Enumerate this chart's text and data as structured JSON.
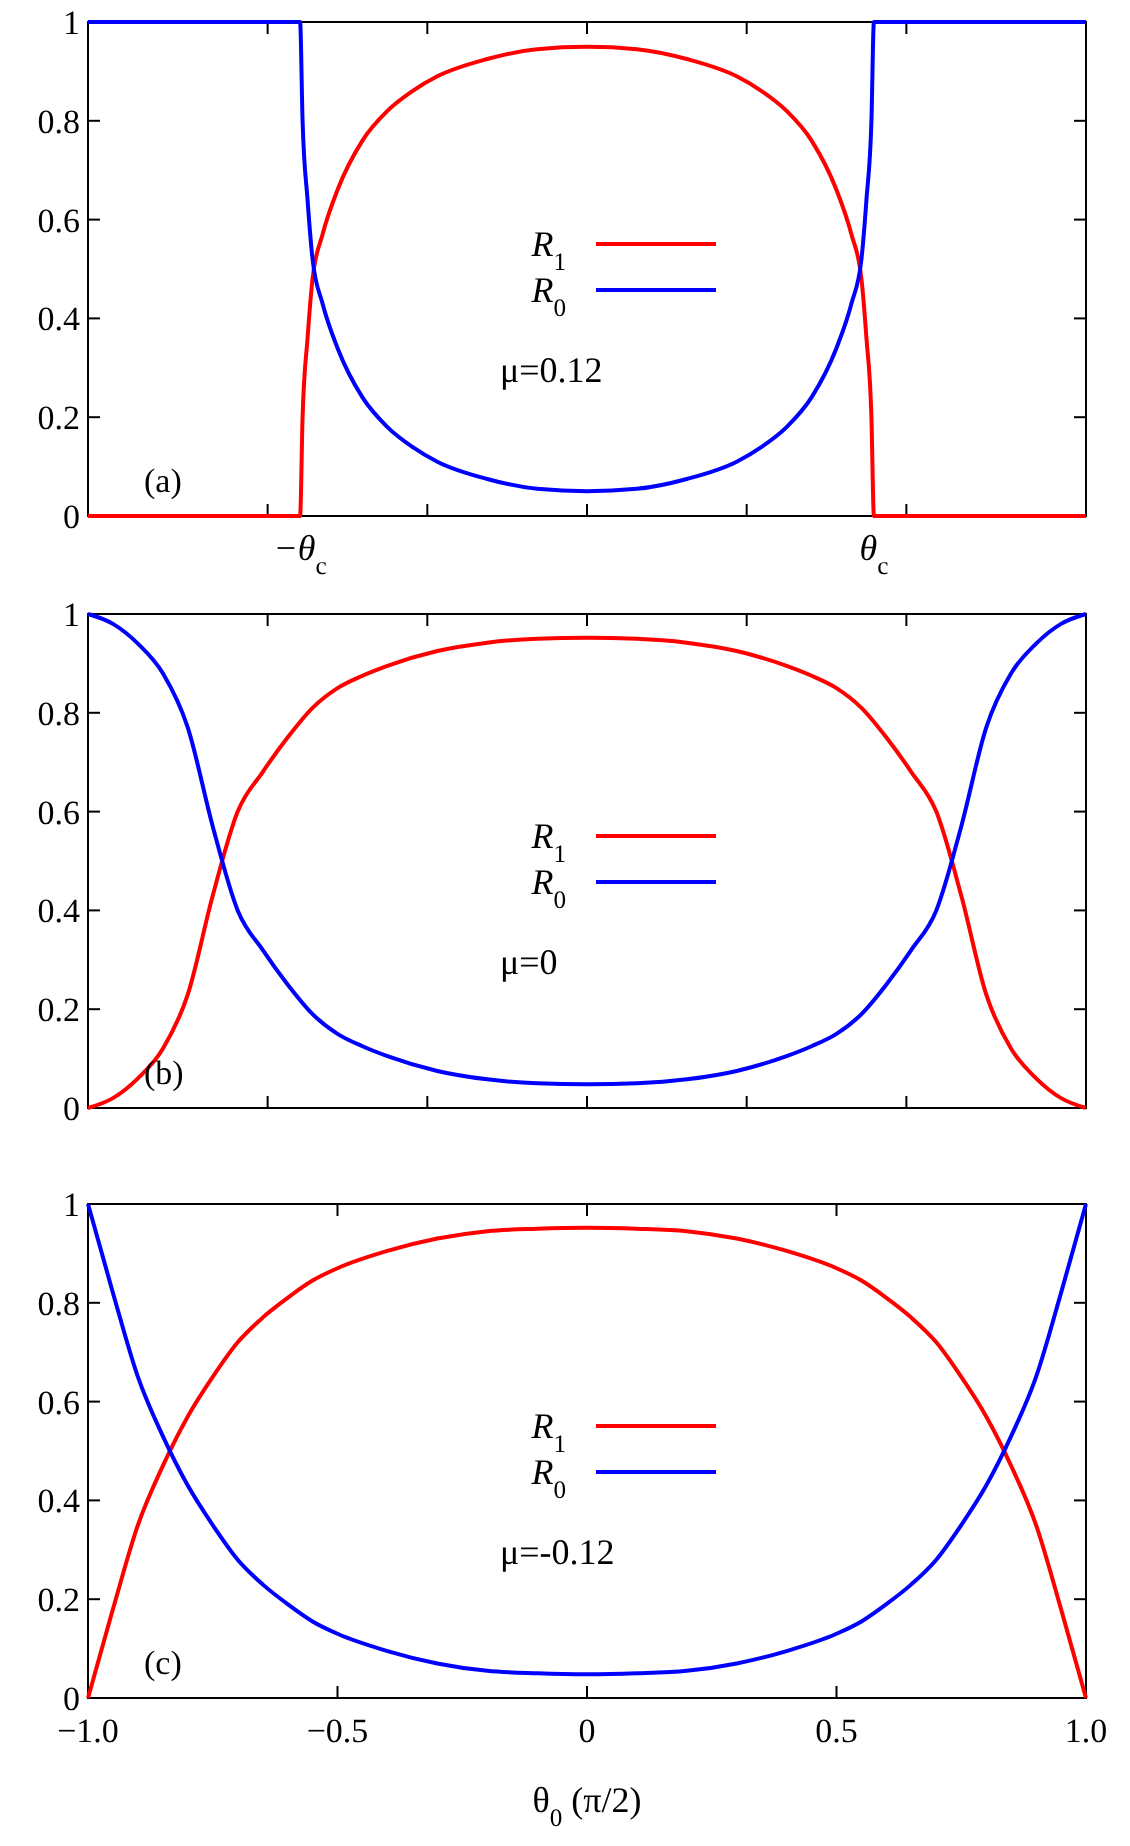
{
  "chart_data": [
    {
      "type": "line",
      "xlim": [
        -1,
        1
      ],
      "ylim": [
        0,
        1
      ],
      "yticks": [
        0,
        0.2,
        0.4,
        0.6,
        0.8,
        1
      ],
      "tick_labels": "y",
      "xticks": [
        {
          "value": -0.64,
          "label": null
        },
        {
          "value": -0.32,
          "label": null
        },
        {
          "value": 0,
          "label": null
        },
        {
          "value": 0.32,
          "label": null
        },
        {
          "value": 0.64,
          "label": null
        }
      ],
      "x": [
        -1,
        -0.8,
        -0.6,
        -0.575,
        -0.57,
        -0.56,
        -0.55,
        -0.53,
        -0.5,
        -0.45,
        -0.4,
        -0.35,
        -0.3,
        -0.2,
        -0.1,
        0,
        0.1,
        0.2,
        0.3,
        0.35,
        0.4,
        0.45,
        0.5,
        0.53,
        0.55,
        0.56,
        0.57,
        0.575,
        0.6,
        0.8,
        1
      ],
      "series": [
        {
          "name": "R$_{1}$",
          "color": "#ff0000",
          "values": [
            0,
            0,
            0,
            0,
            0.2,
            0.36,
            0.48,
            0.57,
            0.66,
            0.76,
            0.82,
            0.86,
            0.89,
            0.925,
            0.945,
            0.95,
            0.945,
            0.925,
            0.89,
            0.86,
            0.82,
            0.76,
            0.66,
            0.57,
            0.48,
            0.36,
            0.2,
            0,
            0,
            0,
            0
          ]
        },
        {
          "name": "R$_{0}$",
          "color": "#0000ff",
          "values": [
            1,
            1,
            1,
            1,
            0.8,
            0.64,
            0.52,
            0.43,
            0.34,
            0.24,
            0.18,
            0.14,
            0.11,
            0.075,
            0.055,
            0.05,
            0.055,
            0.075,
            0.11,
            0.14,
            0.18,
            0.24,
            0.34,
            0.43,
            0.52,
            0.64,
            0.8,
            1,
            1,
            1,
            1
          ]
        }
      ],
      "legend": "center",
      "annotations": [
        "(a)",
        "μ=0.12",
        {
          "text": "−θ$_{c}$",
          "x": -0.575,
          "y": 0
        },
        {
          "text": "θ$_{c}$",
          "x": 0.575,
          "y": 0
        }
      ]
    },
    {
      "type": "line",
      "xlim": [
        -1,
        1
      ],
      "ylim": [
        0,
        1
      ],
      "yticks": [
        0,
        0.2,
        0.4,
        0.6,
        0.8,
        1
      ],
      "tick_labels": "y",
      "xticks": [
        {
          "value": -0.64,
          "label": null
        },
        {
          "value": -0.32,
          "label": null
        },
        {
          "value": 0,
          "label": null
        },
        {
          "value": 0.32,
          "label": null
        },
        {
          "value": 0.64,
          "label": null
        }
      ],
      "x": [
        -1,
        -0.95,
        -0.9,
        -0.85,
        -0.8,
        -0.75,
        -0.7,
        -0.65,
        -0.6,
        -0.55,
        -0.5,
        -0.45,
        -0.4,
        -0.3,
        -0.2,
        -0.1,
        0,
        0.1,
        0.2,
        0.3,
        0.4,
        0.45,
        0.5,
        0.55,
        0.6,
        0.65,
        0.7,
        0.75,
        0.8,
        0.85,
        0.9,
        0.95,
        1
      ],
      "series": [
        {
          "name": "R$_{1}$",
          "color": "#ff0000",
          "values": [
            0,
            0.02,
            0.06,
            0.12,
            0.23,
            0.43,
            0.6,
            0.68,
            0.75,
            0.81,
            0.85,
            0.875,
            0.895,
            0.925,
            0.942,
            0.95,
            0.952,
            0.95,
            0.942,
            0.925,
            0.895,
            0.875,
            0.85,
            0.81,
            0.75,
            0.68,
            0.6,
            0.43,
            0.23,
            0.12,
            0.06,
            0.02,
            0
          ]
        },
        {
          "name": "R$_{0}$",
          "color": "#0000ff",
          "values": [
            1,
            0.98,
            0.94,
            0.88,
            0.77,
            0.57,
            0.4,
            0.32,
            0.25,
            0.19,
            0.15,
            0.125,
            0.105,
            0.075,
            0.058,
            0.05,
            0.048,
            0.05,
            0.058,
            0.075,
            0.105,
            0.125,
            0.15,
            0.19,
            0.25,
            0.32,
            0.4,
            0.57,
            0.77,
            0.88,
            0.94,
            0.98,
            1
          ]
        }
      ],
      "legend": "center",
      "annotations": [
        "(b)",
        "μ=0"
      ]
    },
    {
      "type": "line",
      "xlim": [
        -1,
        1
      ],
      "ylim": [
        0,
        1
      ],
      "yticks": [
        0,
        0.2,
        0.4,
        0.6,
        0.8,
        1
      ],
      "xlabel": "θ$_{0}$ (π/2)",
      "xticks": [
        {
          "value": -1,
          "label": "−1.0"
        },
        {
          "value": -0.5,
          "label": "−0.5"
        },
        0,
        0.5,
        {
          "value": 1,
          "label": "1.0"
        }
      ],
      "x": [
        -1,
        -0.95,
        -0.9,
        -0.85,
        -0.8,
        -0.75,
        -0.7,
        -0.65,
        -0.6,
        -0.55,
        -0.5,
        -0.4,
        -0.3,
        -0.2,
        -0.1,
        0,
        0.1,
        0.2,
        0.3,
        0.4,
        0.5,
        0.55,
        0.6,
        0.65,
        0.7,
        0.75,
        0.8,
        0.85,
        0.9,
        0.95,
        1
      ],
      "series": [
        {
          "name": "R$_{1}$",
          "color": "#ff0000",
          "values": [
            0,
            0.18,
            0.35,
            0.47,
            0.57,
            0.65,
            0.72,
            0.77,
            0.81,
            0.845,
            0.87,
            0.905,
            0.93,
            0.945,
            0.95,
            0.952,
            0.95,
            0.945,
            0.93,
            0.905,
            0.87,
            0.845,
            0.81,
            0.77,
            0.72,
            0.65,
            0.57,
            0.47,
            0.35,
            0.18,
            0
          ]
        },
        {
          "name": "R$_{0}$",
          "color": "#0000ff",
          "values": [
            1,
            0.82,
            0.65,
            0.53,
            0.43,
            0.35,
            0.28,
            0.23,
            0.19,
            0.155,
            0.13,
            0.095,
            0.07,
            0.055,
            0.05,
            0.048,
            0.05,
            0.055,
            0.07,
            0.095,
            0.13,
            0.155,
            0.19,
            0.23,
            0.28,
            0.35,
            0.43,
            0.53,
            0.65,
            0.82,
            1
          ]
        }
      ],
      "legend": "center",
      "annotations": [
        "(c)",
        "μ=-0.12"
      ]
    }
  ]
}
